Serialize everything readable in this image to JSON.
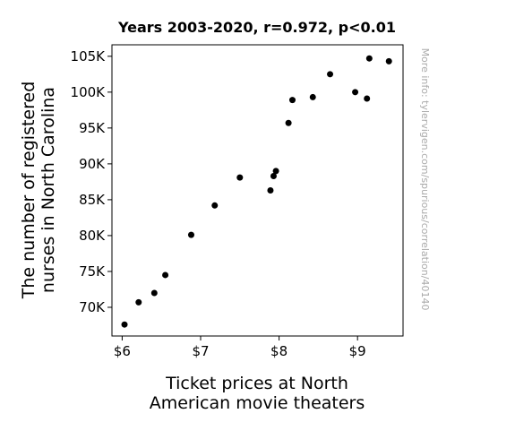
{
  "chart_data": {
    "type": "scatter",
    "title": "Years 2003-2020, r=0.972, p<0.01",
    "xlabel_lines": [
      "Ticket prices at North",
      "American movie theaters"
    ],
    "ylabel_lines": [
      "The number of registered",
      "nurses in North Carolina"
    ],
    "watermark": "More info: tylervigen.com/spurious/correlation/40140",
    "xlim": [
      5.87,
      9.58
    ],
    "ylim": [
      66000,
      106600
    ],
    "x_ticks": [
      {
        "value": 6,
        "label": "$6"
      },
      {
        "value": 7,
        "label": "$7"
      },
      {
        "value": 8,
        "label": "$8"
      },
      {
        "value": 9,
        "label": "$9"
      }
    ],
    "y_ticks": [
      {
        "value": 70000,
        "label": "70K"
      },
      {
        "value": 75000,
        "label": "75K"
      },
      {
        "value": 80000,
        "label": "80K"
      },
      {
        "value": 85000,
        "label": "85K"
      },
      {
        "value": 90000,
        "label": "90K"
      },
      {
        "value": 95000,
        "label": "95K"
      },
      {
        "value": 100000,
        "label": "100K"
      },
      {
        "value": 105000,
        "label": "105K"
      }
    ],
    "grid": false,
    "marker_color": "#000000",
    "points": [
      {
        "x": 6.03,
        "y": 67600
      },
      {
        "x": 6.21,
        "y": 70700
      },
      {
        "x": 6.41,
        "y": 72000
      },
      {
        "x": 6.55,
        "y": 74500
      },
      {
        "x": 6.88,
        "y": 80100
      },
      {
        "x": 7.18,
        "y": 84200
      },
      {
        "x": 7.5,
        "y": 88100
      },
      {
        "x": 7.89,
        "y": 86300
      },
      {
        "x": 7.93,
        "y": 88300
      },
      {
        "x": 7.96,
        "y": 89000
      },
      {
        "x": 8.12,
        "y": 95700
      },
      {
        "x": 8.17,
        "y": 98900
      },
      {
        "x": 8.43,
        "y": 99300
      },
      {
        "x": 8.65,
        "y": 102500
      },
      {
        "x": 8.97,
        "y": 100000
      },
      {
        "x": 9.12,
        "y": 99100
      },
      {
        "x": 9.15,
        "y": 104700
      },
      {
        "x": 9.4,
        "y": 104300
      }
    ]
  }
}
